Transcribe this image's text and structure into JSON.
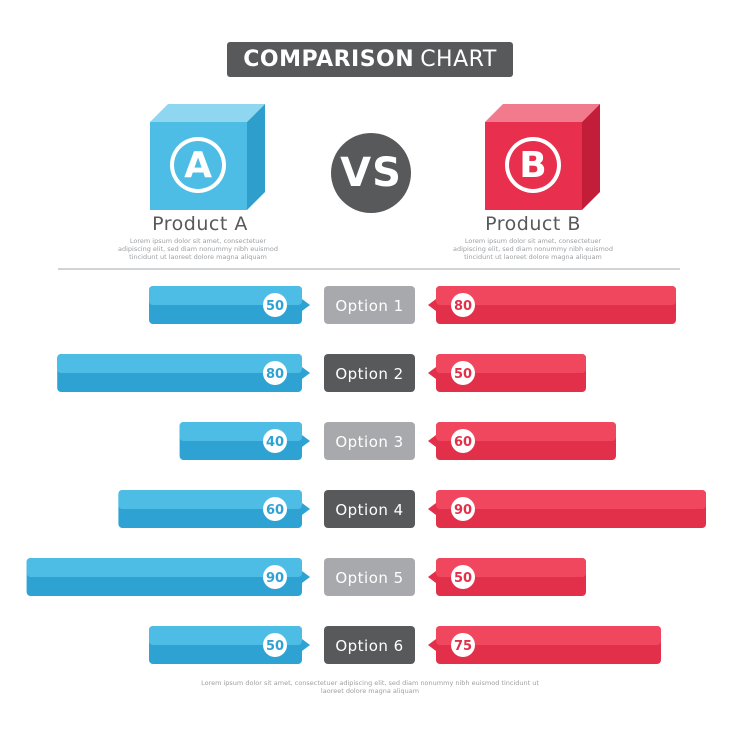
{
  "title": {
    "bold": "COMPARISON",
    "light": "CHART"
  },
  "vs_label": "VS",
  "products": [
    {
      "letter": "A",
      "name": "Product A",
      "desc": "Lorem ipsum dolor sit amet, consectetuer adipiscing elit, sed diam nonummy nibh euismod tincidunt ut laoreet dolore magna aliquam",
      "color": "#4dbde6"
    },
    {
      "letter": "B",
      "name": "Product B",
      "desc": "Lorem ipsum dolor sit amet, consectetuer adipiscing elit, sed diam nonummy nibh euismod tincidunt ut laoreet dolore magna aliquam",
      "color": "#e8304e"
    }
  ],
  "footer": "Lorem ipsum dolor sit amet, consectetuer adipiscing elit, sed diam nonummy nibh euismod tincidunt ut laoreet dolore magna aliquam",
  "chart_data": {
    "type": "bar",
    "categories": [
      "Option 1",
      "Option 2",
      "Option 3",
      "Option 4",
      "Option 5",
      "Option 6"
    ],
    "series": [
      {
        "name": "Product A",
        "values": [
          50,
          80,
          40,
          60,
          90,
          50
        ],
        "color": "#2ea3d3"
      },
      {
        "name": "Product B",
        "values": [
          80,
          50,
          60,
          90,
          50,
          75
        ],
        "color": "#e2304b"
      }
    ],
    "label_colors": [
      "#a7a9ac",
      "#58595b",
      "#a7a9ac",
      "#58595b",
      "#a7a9ac",
      "#58595b"
    ],
    "layout": "butterfly",
    "grid": false
  }
}
